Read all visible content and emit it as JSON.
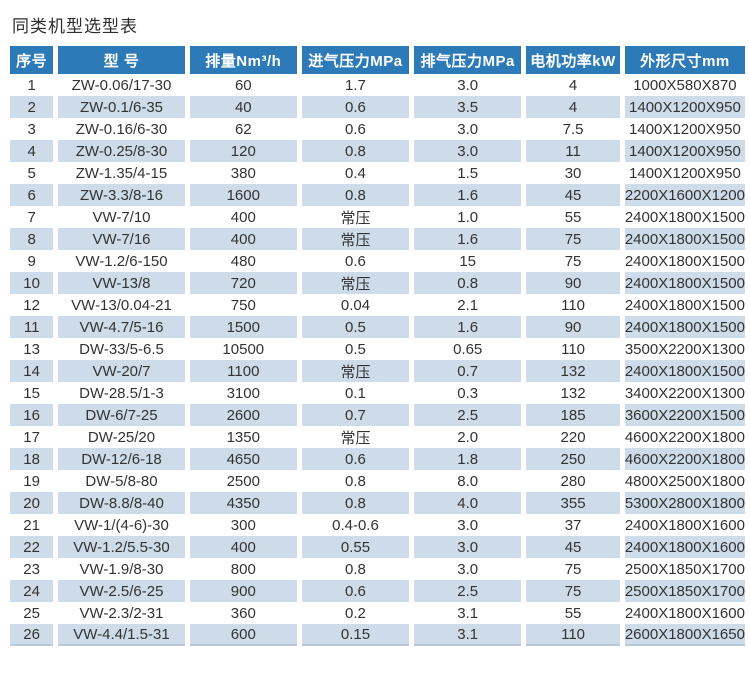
{
  "page": {
    "title": "同类机型选型表"
  },
  "colors": {
    "header_bg": "#2d7ab8",
    "row_alt_bg": "#cddce8",
    "text": "#333333",
    "header_text": "#ffffff",
    "last_row_edge": "#b9c9d6"
  },
  "chart_data": {
    "type": "table",
    "title": "同类机型选型表",
    "columns": [
      "序号",
      "型  号",
      "排量Nm³/h",
      "进气压力MPa",
      "排气压力MPa",
      "电机功率kW",
      "外形尺寸mm"
    ],
    "rows": [
      [
        "1",
        "ZW-0.06/17-30",
        "60",
        "1.7",
        "3.0",
        "4",
        "1000X580X870"
      ],
      [
        "2",
        "ZW-0.1/6-35",
        "40",
        "0.6",
        "3.5",
        "4",
        "1400X1200X950"
      ],
      [
        "3",
        "ZW-0.16/6-30",
        "62",
        "0.6",
        "3.0",
        "7.5",
        "1400X1200X950"
      ],
      [
        "4",
        "ZW-0.25/8-30",
        "120",
        "0.8",
        "3.0",
        "11",
        "1400X1200X950"
      ],
      [
        "5",
        "ZW-1.35/4-15",
        "380",
        "0.4",
        "1.5",
        "30",
        "1400X1200X950"
      ],
      [
        "6",
        "ZW-3.3/8-16",
        "1600",
        "0.8",
        "1.6",
        "45",
        "2200X1600X1200"
      ],
      [
        "7",
        "VW-7/10",
        "400",
        "常压",
        "1.0",
        "55",
        "2400X1800X1500"
      ],
      [
        "8",
        "VW-7/16",
        "400",
        "常压",
        "1.6",
        "75",
        "2400X1800X1500"
      ],
      [
        "9",
        "VW-1.2/6-150",
        "480",
        "0.6",
        "15",
        "75",
        "2400X1800X1500"
      ],
      [
        "10",
        "VW-13/8",
        "720",
        "常压",
        "0.8",
        "90",
        "2400X1800X1500"
      ],
      [
        "12",
        "VW-13/0.04-21",
        "750",
        "0.04",
        "2.1",
        "110",
        "2400X1800X1500"
      ],
      [
        "11",
        "VW-4.7/5-16",
        "1500",
        "0.5",
        "1.6",
        "90",
        "2400X1800X1500"
      ],
      [
        "13",
        "DW-33/5-6.5",
        "10500",
        "0.5",
        "0.65",
        "110",
        "3500X2200X1300"
      ],
      [
        "14",
        "VW-20/7",
        "1100",
        "常压",
        "0.7",
        "132",
        "2400X1800X1500"
      ],
      [
        "15",
        "DW-28.5/1-3",
        "3100",
        "0.1",
        "0.3",
        "132",
        "3400X2200X1300"
      ],
      [
        "16",
        "DW-6/7-25",
        "2600",
        "0.7",
        "2.5",
        "185",
        "3600X2200X1500"
      ],
      [
        "17",
        "DW-25/20",
        "1350",
        "常压",
        "2.0",
        "220",
        "4600X2200X1800"
      ],
      [
        "18",
        "DW-12/6-18",
        "4650",
        "0.6",
        "1.8",
        "250",
        "4600X2200X1800"
      ],
      [
        "19",
        "DW-5/8-80",
        "2500",
        "0.8",
        "8.0",
        "280",
        "4800X2500X1800"
      ],
      [
        "20",
        "DW-8.8/8-40",
        "4350",
        "0.8",
        "4.0",
        "355",
        "5300X2800X1800"
      ],
      [
        "21",
        "VW-1/(4-6)-30",
        "300",
        "0.4-0.6",
        "3.0",
        "37",
        "2400X1800X1600"
      ],
      [
        "22",
        "VW-1.2/5.5-30",
        "400",
        "0.55",
        "3.0",
        "45",
        "2400X1800X1600"
      ],
      [
        "23",
        "VW-1.9/8-30",
        "800",
        "0.8",
        "3.0",
        "75",
        "2500X1850X1700"
      ],
      [
        "24",
        "VW-2.5/6-25",
        "900",
        "0.6",
        "2.5",
        "75",
        "2500X1850X1700"
      ],
      [
        "25",
        "VW-2.3/2-31",
        "360",
        "0.2",
        "3.1",
        "55",
        "2400X1800X1600"
      ],
      [
        "26",
        "VW-4.4/1.5-31",
        "600",
        "0.15",
        "3.1",
        "110",
        "2600X1800X1650"
      ]
    ]
  }
}
